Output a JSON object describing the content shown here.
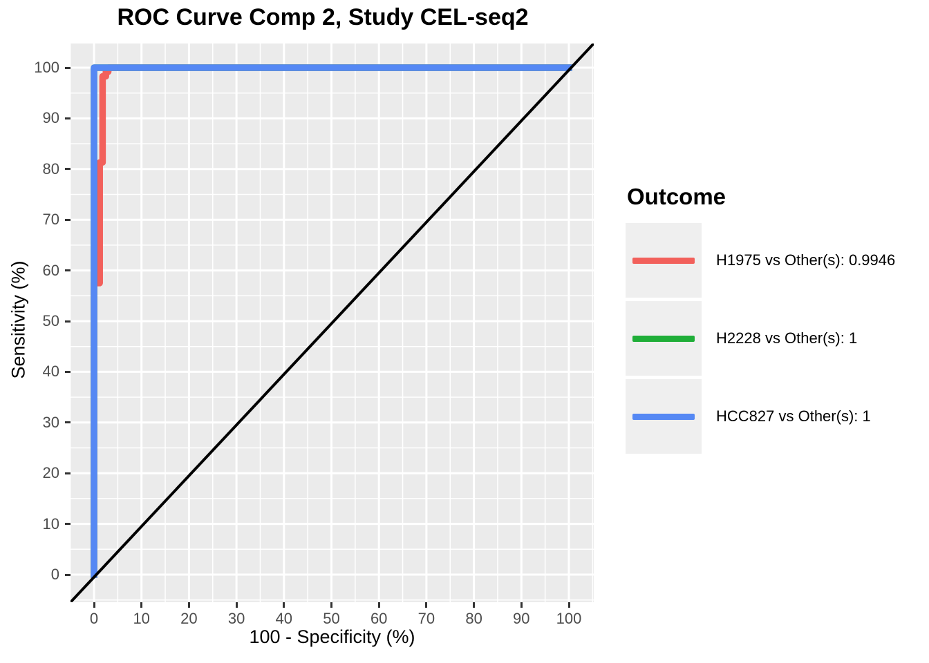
{
  "chart_data": {
    "type": "line",
    "title": "ROC Curve Comp 2, Study CEL-seq2",
    "xlabel": "100 - Specificity (%)",
    "ylabel": "Sensitivity (%)",
    "xlim": [
      -5.25,
      105.25
    ],
    "ylim": [
      -5.25,
      105.25
    ],
    "x_ticks": [
      0,
      10,
      20,
      30,
      40,
      50,
      60,
      70,
      80,
      90,
      100
    ],
    "y_ticks": [
      0,
      10,
      20,
      30,
      40,
      50,
      60,
      70,
      80,
      90,
      100
    ],
    "minor_ticks": [
      -5,
      5,
      15,
      25,
      35,
      45,
      55,
      65,
      75,
      85,
      95,
      105
    ],
    "grid": true,
    "panel_background": "#EBEBEB",
    "gridline_color": "#FFFFFF",
    "tick_color": "#333333",
    "tick_label_color": "#4D4D4D",
    "legend_position": "right",
    "series": [
      {
        "name": "H1975 vs Other(s): 0.9946",
        "auc": 0.9946,
        "color": "#F2605B",
        "points": [
          [
            0,
            0
          ],
          [
            0,
            57.5
          ],
          [
            1.2,
            57.5
          ],
          [
            1.2,
            81.3
          ],
          [
            1.8,
            81.3
          ],
          [
            1.8,
            98.3
          ],
          [
            2.5,
            98.3
          ],
          [
            2.5,
            99.2
          ],
          [
            3,
            99.2
          ],
          [
            3,
            100
          ],
          [
            100,
            100
          ]
        ]
      },
      {
        "name": "H2228 vs Other(s): 1",
        "auc": 1,
        "color": "#1FAE38",
        "points": [
          [
            0,
            0
          ],
          [
            0,
            100
          ],
          [
            100,
            100
          ]
        ]
      },
      {
        "name": "HCC827 vs Other(s): 1",
        "auc": 1,
        "color": "#5588F4",
        "points": [
          [
            0,
            0
          ],
          [
            0,
            100
          ],
          [
            100,
            100
          ]
        ]
      }
    ],
    "reference_line": {
      "intercept": 0,
      "slope": 1,
      "color": "#000000"
    }
  },
  "legend": {
    "title": "Outcome",
    "items": [
      {
        "label": "H1975 vs Other(s): 0.9946",
        "color": "#F2605B"
      },
      {
        "label": "H2228 vs Other(s): 1",
        "color": "#1FAE38"
      },
      {
        "label": "HCC827 vs Other(s): 1",
        "color": "#5588F4"
      }
    ]
  }
}
